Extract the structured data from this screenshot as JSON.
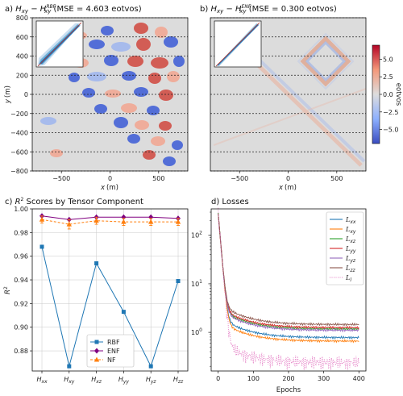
{
  "chart_data": [
    {
      "type": "heatmap",
      "panel": "a",
      "title": "a) H_xy − H_xy^RBF (MSE = 4.603 eotvos)",
      "title_parts": {
        "prefix": "a) ",
        "symbol": "H",
        "sub": "xy",
        "minus": " − ",
        "sup": "RBF",
        "mse": " (MSE = 4.603 eotvos)"
      },
      "xlabel": "x (m)",
      "ylabel": "y (m)",
      "xlim": [
        -800,
        800
      ],
      "ylim": [
        -800,
        800
      ],
      "xticks": [
        -500,
        0,
        500
      ],
      "yticks": [
        -800,
        -600,
        -400,
        -200,
        0,
        200,
        400,
        600,
        800
      ],
      "survey_lines_y": [
        -800,
        -600,
        -400,
        -200,
        0,
        200,
        400,
        600,
        800
      ],
      "inset": "scatter"
    },
    {
      "type": "heatmap",
      "panel": "b",
      "title": "b) H_xy − H_xy^ENF (MSE = 0.300 eotvos)",
      "title_parts": {
        "prefix": "b) ",
        "symbol": "H",
        "sub": "xy",
        "minus": " − ",
        "sup": "ENF",
        "mse": " (MSE = 0.300 eotvos)"
      },
      "xlabel": "x (m)",
      "xlim": [
        -800,
        800
      ],
      "ylim": [
        -800,
        800
      ],
      "xticks": [
        -500,
        0,
        500
      ],
      "survey_lines_y": [
        -800,
        -600,
        -400,
        -200,
        0,
        200,
        400,
        600,
        800
      ],
      "inset": "scatter",
      "colorbar": {
        "label": "eotvos",
        "range": [
          -7,
          7
        ],
        "ticks": [
          -5,
          -2.5,
          0,
          2.5,
          5
        ],
        "tick_labels": [
          "−5.0",
          "−2.5",
          "0.0",
          "2.5",
          "5.0"
        ],
        "colors": [
          "#3a4cc0",
          "#dddddd",
          "#b40426"
        ]
      }
    },
    {
      "type": "line",
      "panel": "c",
      "title": "c) R² Scores by Tensor Component",
      "title_parts": {
        "prefix": "c) ",
        "r": "R",
        "sup": "2",
        "rest": " Scores by Tensor Component"
      },
      "ylabel": "R²",
      "categories": [
        {
          "sym": "H",
          "sub": "xx"
        },
        {
          "sym": "H",
          "sub": "xy"
        },
        {
          "sym": "H",
          "sub": "xz"
        },
        {
          "sym": "H",
          "sub": "yy"
        },
        {
          "sym": "H",
          "sub": "yz"
        },
        {
          "sym": "H",
          "sub": "zz"
        }
      ],
      "ylim": [
        0.863,
        1.0
      ],
      "yticks": [
        0.88,
        0.9,
        0.92,
        0.94,
        0.96,
        0.98,
        1.0
      ],
      "ytick_labels": [
        "0.88",
        "0.90",
        "0.92",
        "0.94",
        "0.96",
        "0.98",
        "1.00"
      ],
      "grid": true,
      "legend_position": "lower-center",
      "series": [
        {
          "name": "RBF",
          "color": "#1f77b4",
          "marker": "square",
          "values": [
            0.968,
            0.867,
            0.954,
            0.913,
            0.867,
            0.939
          ]
        },
        {
          "name": "ENF",
          "color": "#800080",
          "marker": "diamond",
          "values": [
            0.994,
            0.991,
            0.993,
            0.993,
            0.993,
            0.992
          ]
        },
        {
          "name": "NF",
          "color": "#ff7f0e",
          "marker": "triangle",
          "dashed": true,
          "values": [
            0.991,
            0.987,
            0.99,
            0.989,
            0.989,
            0.989
          ],
          "err": [
            0.003,
            0.004,
            0.003,
            0.003,
            0.003,
            0.003
          ]
        }
      ]
    },
    {
      "type": "line",
      "panel": "d",
      "title": "d) Losses",
      "xlabel": "Epochs",
      "xlim": [
        -20,
        420
      ],
      "xticks": [
        0,
        100,
        200,
        300,
        400
      ],
      "ylog": true,
      "ylim": [
        0.16,
        350
      ],
      "yticks": [
        1,
        10,
        100
      ],
      "ytick_labels": [
        {
          "b": "10",
          "e": "0"
        },
        {
          "b": "10",
          "e": "1"
        },
        {
          "b": "10",
          "e": "2"
        }
      ],
      "legend_position": "top-right",
      "series": [
        {
          "name": "L_xx",
          "sub": "xx",
          "color": "#1f77b4",
          "final": 0.78
        },
        {
          "name": "L_xy",
          "sub": "xy",
          "color": "#ff7f0e",
          "final": 0.66
        },
        {
          "name": "L_xz",
          "sub": "xz",
          "color": "#2ca02c",
          "final": 1.18
        },
        {
          "name": "L_yy",
          "sub": "yy",
          "color": "#d62728",
          "final": 1.25
        },
        {
          "name": "L_yz",
          "sub": "yz",
          "color": "#9467bd",
          "final": 1.1
        },
        {
          "name": "L_zz",
          "sub": "zz",
          "color": "#8c564b",
          "final": 1.45
        },
        {
          "name": "L_l",
          "sub": "l",
          "color": "#e377c2",
          "dotted": true,
          "final": 0.24
        }
      ],
      "loss_start": 280
    }
  ]
}
